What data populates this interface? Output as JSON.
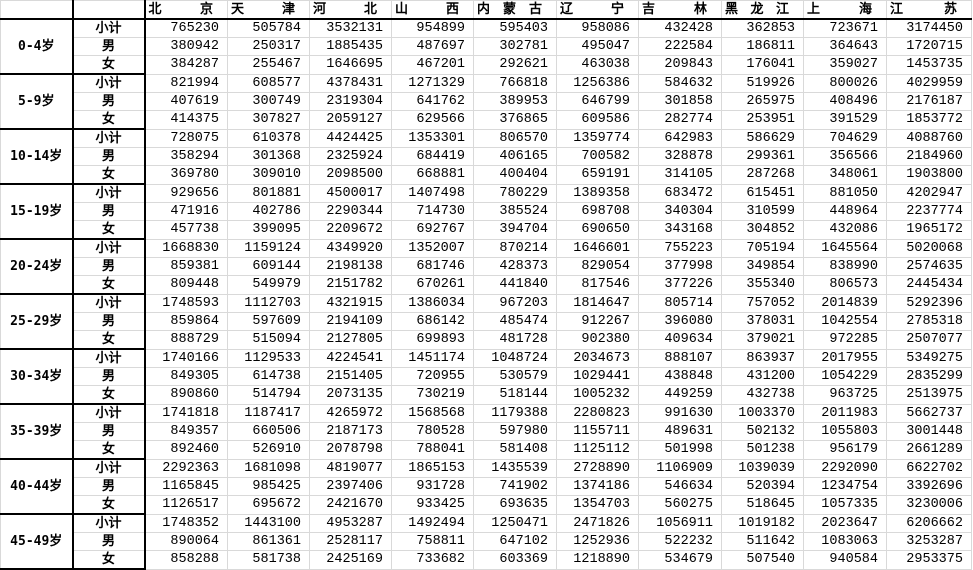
{
  "columns": [
    "北京",
    "天津",
    "河北",
    "山西",
    "内蒙古",
    "辽宁",
    "吉林",
    "黑龙江",
    "上海",
    "江苏"
  ],
  "groups": [
    {
      "age": "0-4岁",
      "rows": [
        {
          "label": "小计",
          "values": [
            765230,
            505784,
            3532131,
            954899,
            595403,
            958086,
            432428,
            362853,
            723671,
            3174450
          ]
        },
        {
          "label": "男",
          "values": [
            380942,
            250317,
            1885435,
            487697,
            302781,
            495047,
            222584,
            186811,
            364643,
            1720715
          ]
        },
        {
          "label": "女",
          "values": [
            384287,
            255467,
            1646695,
            467201,
            292621,
            463038,
            209843,
            176041,
            359027,
            1453735
          ]
        }
      ]
    },
    {
      "age": "5-9岁",
      "rows": [
        {
          "label": "小计",
          "values": [
            821994,
            608577,
            4378431,
            1271329,
            766818,
            1256386,
            584632,
            519926,
            800026,
            4029959
          ]
        },
        {
          "label": "男",
          "values": [
            407619,
            300749,
            2319304,
            641762,
            389953,
            646799,
            301858,
            265975,
            408496,
            2176187
          ]
        },
        {
          "label": "女",
          "values": [
            414375,
            307827,
            2059127,
            629566,
            376865,
            609586,
            282774,
            253951,
            391529,
            1853772
          ]
        }
      ]
    },
    {
      "age": "10-14岁",
      "rows": [
        {
          "label": "小计",
          "values": [
            728075,
            610378,
            4424425,
            1353301,
            806570,
            1359774,
            642983,
            586629,
            704629,
            4088760
          ]
        },
        {
          "label": "男",
          "values": [
            358294,
            301368,
            2325924,
            684419,
            406165,
            700582,
            328878,
            299361,
            356566,
            2184960
          ]
        },
        {
          "label": "女",
          "values": [
            369780,
            309010,
            2098500,
            668881,
            400404,
            659191,
            314105,
            287268,
            348061,
            1903800
          ]
        }
      ]
    },
    {
      "age": "15-19岁",
      "rows": [
        {
          "label": "小计",
          "values": [
            929656,
            801881,
            4500017,
            1407498,
            780229,
            1389358,
            683472,
            615451,
            881050,
            4202947
          ]
        },
        {
          "label": "男",
          "values": [
            471916,
            402786,
            2290344,
            714730,
            385524,
            698708,
            340304,
            310599,
            448964,
            2237774
          ]
        },
        {
          "label": "女",
          "values": [
            457738,
            399095,
            2209672,
            692767,
            394704,
            690650,
            343168,
            304852,
            432086,
            1965172
          ]
        }
      ]
    },
    {
      "age": "20-24岁",
      "rows": [
        {
          "label": "小计",
          "values": [
            1668830,
            1159124,
            4349920,
            1352007,
            870214,
            1646601,
            755223,
            705194,
            1645564,
            5020068
          ]
        },
        {
          "label": "男",
          "values": [
            859381,
            609144,
            2198138,
            681746,
            428373,
            829054,
            377998,
            349854,
            838990,
            2574635
          ]
        },
        {
          "label": "女",
          "values": [
            809448,
            549979,
            2151782,
            670261,
            441840,
            817546,
            377226,
            355340,
            806573,
            2445434
          ]
        }
      ]
    },
    {
      "age": "25-29岁",
      "rows": [
        {
          "label": "小计",
          "values": [
            1748593,
            1112703,
            4321915,
            1386034,
            967203,
            1814647,
            805714,
            757052,
            2014839,
            5292396
          ]
        },
        {
          "label": "男",
          "values": [
            859864,
            597609,
            2194109,
            686142,
            485474,
            912267,
            396080,
            378031,
            1042554,
            2785318
          ]
        },
        {
          "label": "女",
          "values": [
            888729,
            515094,
            2127805,
            699893,
            481728,
            902380,
            409634,
            379021,
            972285,
            2507077
          ]
        }
      ]
    },
    {
      "age": "30-34岁",
      "rows": [
        {
          "label": "小计",
          "values": [
            1740166,
            1129533,
            4224541,
            1451174,
            1048724,
            2034673,
            888107,
            863937,
            2017955,
            5349275
          ]
        },
        {
          "label": "男",
          "values": [
            849305,
            614738,
            2151405,
            720955,
            530579,
            1029441,
            438848,
            431200,
            1054229,
            2835299
          ]
        },
        {
          "label": "女",
          "values": [
            890860,
            514794,
            2073135,
            730219,
            518144,
            1005232,
            449259,
            432738,
            963725,
            2513975
          ]
        }
      ]
    },
    {
      "age": "35-39岁",
      "rows": [
        {
          "label": "小计",
          "values": [
            1741818,
            1187417,
            4265972,
            1568568,
            1179388,
            2280823,
            991630,
            1003370,
            2011983,
            5662737
          ]
        },
        {
          "label": "男",
          "values": [
            849357,
            660506,
            2187173,
            780528,
            597980,
            1155711,
            489631,
            502132,
            1055803,
            3001448
          ]
        },
        {
          "label": "女",
          "values": [
            892460,
            526910,
            2078798,
            788041,
            581408,
            1125112,
            501998,
            501238,
            956179,
            2661289
          ]
        }
      ]
    },
    {
      "age": "40-44岁",
      "rows": [
        {
          "label": "小计",
          "values": [
            2292363,
            1681098,
            4819077,
            1865153,
            1435539,
            2728890,
            1106909,
            1039039,
            2292090,
            6622702
          ]
        },
        {
          "label": "男",
          "values": [
            1165845,
            985425,
            2397406,
            931728,
            741902,
            1374186,
            546634,
            520394,
            1234754,
            3392696
          ]
        },
        {
          "label": "女",
          "values": [
            1126517,
            695672,
            2421670,
            933425,
            693635,
            1354703,
            560275,
            518645,
            1057335,
            3230006
          ]
        }
      ]
    },
    {
      "age": "45-49岁",
      "rows": [
        {
          "label": "小计",
          "values": [
            1748352,
            1443100,
            4953287,
            1492494,
            1250471,
            2471826,
            1056911,
            1019182,
            2023647,
            6206662
          ]
        },
        {
          "label": "男",
          "values": [
            890064,
            861361,
            2528117,
            758811,
            647102,
            1252936,
            522232,
            511642,
            1083063,
            3253287
          ]
        },
        {
          "label": "女",
          "values": [
            858288,
            581738,
            2425169,
            733682,
            603369,
            1218890,
            534679,
            507540,
            940584,
            2953375
          ]
        }
      ]
    }
  ]
}
